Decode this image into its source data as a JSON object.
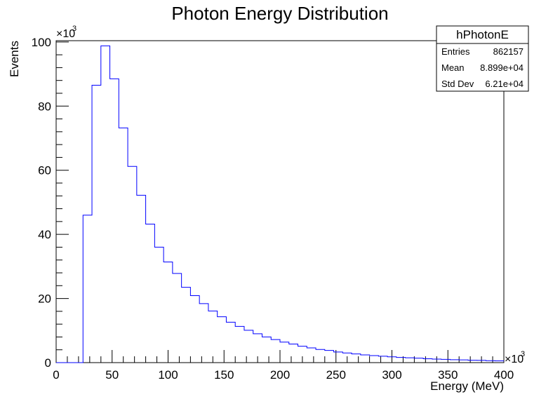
{
  "chart_data": {
    "type": "histogram",
    "title": "Photon Energy Distribution",
    "xlabel": "Energy (MeV)",
    "ylabel": "Events",
    "x_multiplier": "×10",
    "x_exponent": "3",
    "y_multiplier": "×10",
    "y_exponent": "3",
    "xlim": [
      0,
      400
    ],
    "ylim": [
      0,
      100
    ],
    "x_ticks": [
      0,
      50,
      100,
      150,
      200,
      250,
      300,
      350,
      400
    ],
    "y_ticks": [
      0,
      20,
      40,
      60,
      80,
      100
    ],
    "bin_width": 8,
    "bin_edges_start": 0,
    "values": [
      0,
      0,
      0,
      46,
      86.5,
      98.8,
      88.5,
      73.2,
      61.2,
      52.2,
      43.2,
      36,
      31.4,
      27.8,
      23.5,
      20.9,
      18.4,
      16.1,
      14.3,
      12.6,
      11.3,
      10.1,
      9.0,
      8.0,
      7.2,
      6.4,
      5.8,
      5.1,
      4.6,
      4.1,
      3.8,
      3.3,
      3.0,
      2.7,
      2.4,
      2.2,
      2.0,
      1.8,
      1.6,
      1.5,
      1.4,
      1.2,
      1.1,
      1.0,
      0.9,
      0.85,
      0.75,
      0.7,
      0.6,
      0.55
    ],
    "line_color": "#0000ff",
    "stats_box": {
      "name": "hPhotonE",
      "rows": [
        {
          "label": "Entries",
          "value": "862157"
        },
        {
          "label": "Mean",
          "value": "8.899e+04"
        },
        {
          "label": "Std Dev",
          "value": "6.21e+04"
        }
      ]
    }
  }
}
